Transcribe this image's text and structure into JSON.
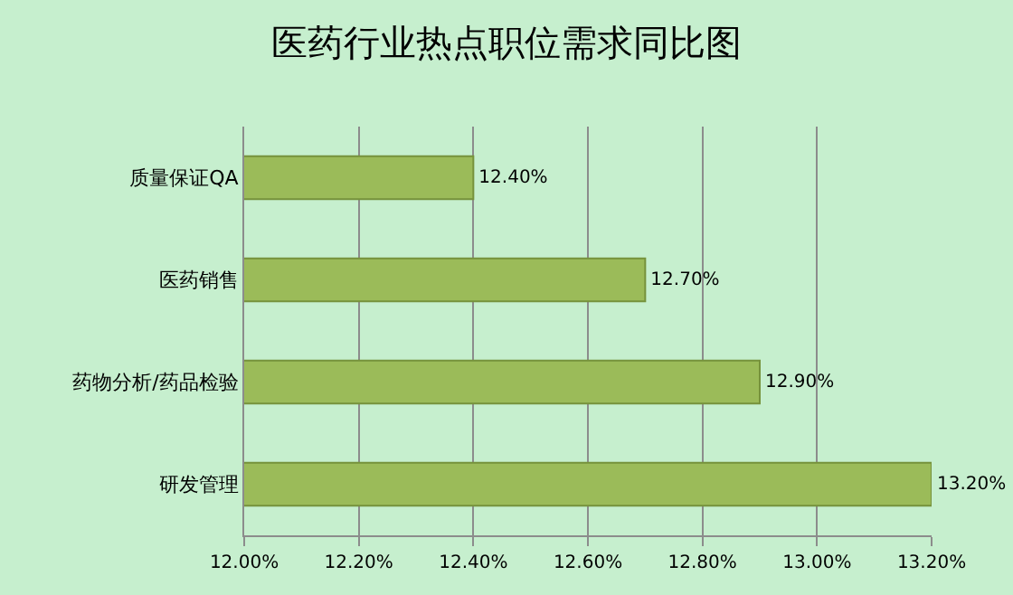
{
  "chart_data": {
    "type": "bar",
    "orientation": "horizontal",
    "title": "医药行业热点职位需求同比图",
    "categories": [
      "质量保证QA",
      "医药销售",
      "药物分析/药品检验",
      "研发管理"
    ],
    "values": [
      12.4,
      12.7,
      12.9,
      13.2
    ],
    "color": "#9bbb59",
    "value_labels": [
      "12.40%",
      "12.70%",
      "12.90%",
      "13.20%"
    ],
    "xlim": [
      12.0,
      13.2
    ],
    "xticks": [
      {
        "value": 12.0,
        "label": "12.00%"
      },
      {
        "value": 12.2,
        "label": "12.20%"
      },
      {
        "value": 12.4,
        "label": "12.40%"
      },
      {
        "value": 12.6,
        "label": "12.60%"
      },
      {
        "value": 12.8,
        "label": "12.80%"
      },
      {
        "value": 13.0,
        "label": "13.00%"
      },
      {
        "value": 13.2,
        "label": "13.20%"
      }
    ],
    "grid": "x"
  }
}
